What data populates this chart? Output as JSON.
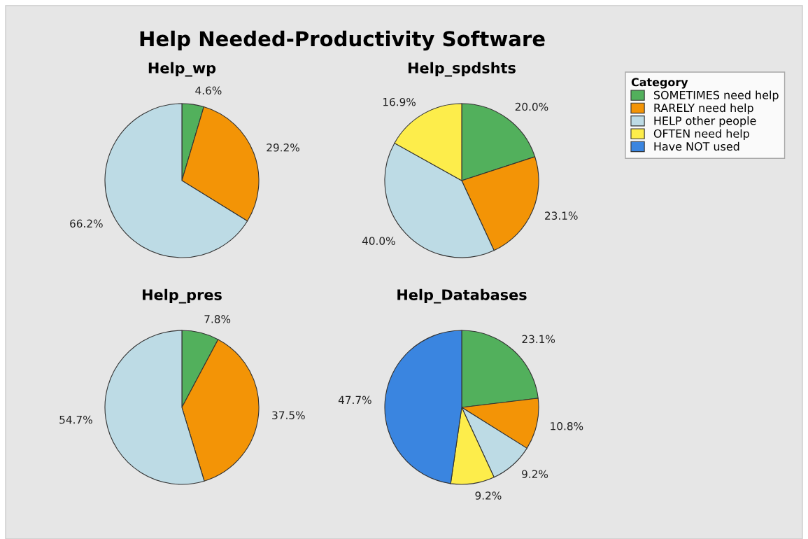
{
  "chart_data": [
    {
      "type": "pie",
      "title": "Help_wp",
      "annotations": [
        "Help Needed-Productivity Software"
      ],
      "categories": [
        null,
        null,
        null
      ],
      "values": [
        4.6,
        29.2,
        66.2
      ],
      "colors": [
        "#52b05c",
        "#f39406",
        "#bddbe5"
      ],
      "value_labels": [
        "4.6%",
        "29.2%",
        "66.2%"
      ]
    },
    {
      "type": "pie",
      "title": "Help_spdshts",
      "categories": [
        null,
        null,
        null,
        null
      ],
      "values": [
        20.0,
        23.1,
        40.0,
        16.9
      ],
      "colors": [
        "#52b05c",
        "#f39406",
        "#bddbe5",
        "#fded4b"
      ],
      "value_labels": [
        "20.0%",
        "23.1%",
        "40.0%",
        "16.9%"
      ]
    },
    {
      "type": "pie",
      "title": "Help_pres",
      "categories": [
        null,
        null,
        null
      ],
      "values": [
        7.8,
        37.5,
        54.7
      ],
      "colors": [
        "#52b05c",
        "#f39406",
        "#bddbe5"
      ],
      "value_labels": [
        "7.8%",
        "37.5%",
        "54.7%"
      ]
    },
    {
      "type": "pie",
      "title": "Help_Databases",
      "legend": "right",
      "legend_title": "Category",
      "categories": [
        "SOMETIMES need help",
        "RARELY need help",
        "HELP other people",
        "OFTEN need help",
        "Have NOT used"
      ],
      "values": [
        23.1,
        10.8,
        9.2,
        9.2,
        47.7
      ],
      "colors": [
        "#52b05c",
        "#f39406",
        "#bddbe5",
        "#fded4b",
        "#3a85e0"
      ],
      "value_labels": [
        "23.1%",
        "10.8%",
        "9.2%",
        "9.2%",
        "47.7%"
      ]
    }
  ]
}
